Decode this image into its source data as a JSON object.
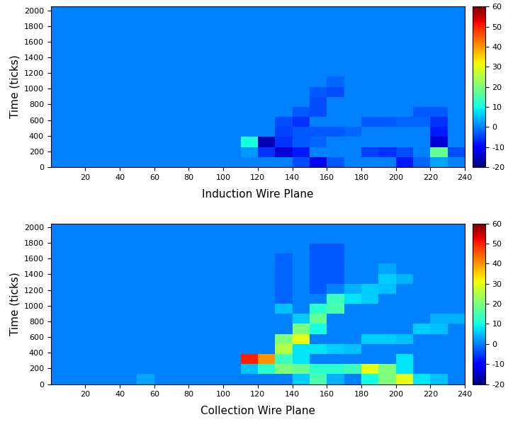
{
  "chart_data": [
    {
      "type": "heatmap",
      "color": "jet",
      "x_label": "Induction Wire Plane",
      "y_label": "Time (ticks)",
      "xlim": [
        0,
        240
      ],
      "ylim": [
        0,
        2048
      ],
      "xticks": [
        20,
        40,
        60,
        80,
        100,
        120,
        140,
        160,
        180,
        200,
        220,
        240
      ],
      "yticks": [
        0,
        200,
        400,
        600,
        800,
        1000,
        1200,
        1400,
        1600,
        1800,
        2000
      ],
      "x_edges": [
        0,
        10,
        20,
        30,
        40,
        50,
        60,
        70,
        80,
        90,
        100,
        110,
        120,
        130,
        140,
        150,
        160,
        170,
        180,
        190,
        200,
        210,
        220,
        230,
        240
      ],
      "y_edges": [
        0,
        128,
        256,
        384,
        512,
        640,
        768,
        896,
        1024,
        1152,
        1280,
        1408,
        1536,
        1664,
        1792,
        1920,
        2048
      ],
      "cells": [
        [
          0,
          0,
          0,
          0,
          0,
          0,
          0,
          0,
          0,
          0,
          0,
          0,
          0,
          0,
          -4,
          -12,
          -3,
          0,
          0,
          0,
          -8,
          -2,
          3,
          0
        ],
        [
          0,
          0,
          0,
          0,
          0,
          0,
          0,
          0,
          0,
          0,
          0,
          2,
          -6,
          -14,
          -8,
          0,
          0,
          0,
          -5,
          -6,
          -4,
          0,
          18,
          -4
        ],
        [
          0,
          0,
          0,
          0,
          0,
          0,
          0,
          0,
          0,
          0,
          0,
          10,
          -16,
          -6,
          -3,
          -2,
          0,
          0,
          0,
          0,
          0,
          0,
          -14,
          0
        ],
        [
          0,
          0,
          0,
          0,
          0,
          0,
          0,
          0,
          0,
          0,
          0,
          0,
          0,
          -5,
          -3,
          -3,
          -3,
          -2,
          0,
          0,
          0,
          0,
          -8,
          0
        ],
        [
          0,
          0,
          0,
          0,
          0,
          0,
          0,
          0,
          0,
          0,
          0,
          0,
          0,
          -4,
          -6,
          0,
          0,
          0,
          -3,
          -3,
          -2,
          -2,
          -6,
          0
        ],
        [
          0,
          0,
          0,
          0,
          0,
          0,
          0,
          0,
          0,
          0,
          0,
          0,
          0,
          0,
          -3,
          -4,
          0,
          0,
          0,
          0,
          0,
          -3,
          -3,
          0
        ],
        [
          0,
          0,
          0,
          0,
          0,
          0,
          0,
          0,
          0,
          0,
          0,
          0,
          0,
          0,
          0,
          -4,
          0,
          0,
          0,
          0,
          0,
          0,
          0,
          0
        ],
        [
          0,
          0,
          0,
          0,
          0,
          0,
          0,
          0,
          0,
          0,
          0,
          0,
          0,
          0,
          0,
          -3,
          -4,
          0,
          0,
          0,
          0,
          0,
          0,
          0
        ],
        [
          0,
          0,
          0,
          0,
          0,
          0,
          0,
          0,
          0,
          0,
          0,
          0,
          0,
          0,
          0,
          0,
          -2,
          0,
          0,
          0,
          0,
          0,
          0,
          0
        ],
        [
          0,
          0,
          0,
          0,
          0,
          0,
          0,
          0,
          0,
          0,
          0,
          0,
          0,
          0,
          0,
          0,
          0,
          0,
          0,
          0,
          0,
          0,
          0,
          0
        ],
        [
          0,
          0,
          0,
          0,
          0,
          0,
          0,
          0,
          0,
          0,
          0,
          0,
          0,
          0,
          0,
          0,
          0,
          0,
          0,
          0,
          0,
          0,
          0,
          0
        ],
        [
          0,
          0,
          0,
          0,
          0,
          0,
          0,
          0,
          0,
          0,
          0,
          0,
          0,
          0,
          0,
          0,
          0,
          0,
          0,
          0,
          0,
          0,
          0,
          0
        ],
        [
          0,
          0,
          0,
          0,
          0,
          0,
          0,
          0,
          0,
          0,
          0,
          0,
          0,
          0,
          0,
          0,
          0,
          0,
          0,
          0,
          0,
          0,
          0,
          0
        ],
        [
          0,
          0,
          0,
          0,
          0,
          0,
          0,
          0,
          0,
          0,
          0,
          0,
          0,
          0,
          0,
          0,
          0,
          0,
          0,
          0,
          0,
          0,
          0,
          0
        ],
        [
          0,
          0,
          0,
          0,
          0,
          0,
          0,
          0,
          0,
          0,
          0,
          0,
          0,
          0,
          0,
          0,
          0,
          0,
          0,
          0,
          0,
          0,
          0,
          0
        ],
        [
          0,
          0,
          0,
          0,
          0,
          0,
          0,
          0,
          0,
          0,
          0,
          0,
          0,
          0,
          0,
          0,
          0,
          0,
          0,
          0,
          0,
          0,
          0,
          0
        ]
      ],
      "colorbar_range": [
        -20,
        60
      ],
      "colorbar_ticks": [
        -20,
        -10,
        0,
        10,
        20,
        30,
        40,
        50,
        60
      ]
    },
    {
      "type": "heatmap",
      "color": "jet",
      "x_label": "Collection Wire Plane",
      "y_label": "Time (ticks)",
      "xlim": [
        0,
        240
      ],
      "ylim": [
        0,
        2048
      ],
      "xticks": [
        20,
        40,
        60,
        80,
        100,
        120,
        140,
        160,
        180,
        200,
        220,
        240
      ],
      "yticks": [
        0,
        200,
        400,
        600,
        800,
        1000,
        1200,
        1400,
        1600,
        1800,
        2000
      ],
      "x_edges": [
        0,
        10,
        20,
        30,
        40,
        50,
        60,
        70,
        80,
        90,
        100,
        110,
        120,
        130,
        140,
        150,
        160,
        170,
        180,
        190,
        200,
        210,
        220,
        230,
        240
      ],
      "y_edges": [
        0,
        128,
        256,
        384,
        512,
        640,
        768,
        896,
        1024,
        1152,
        1280,
        1408,
        1536,
        1664,
        1792,
        1920,
        2048
      ],
      "cells": [
        [
          0,
          0,
          0,
          0,
          0,
          3,
          0,
          0,
          0,
          0,
          0,
          0,
          0,
          0,
          6,
          15,
          4,
          0,
          10,
          20,
          30,
          8,
          5,
          0
        ],
        [
          0,
          0,
          0,
          0,
          0,
          0,
          0,
          0,
          0,
          0,
          0,
          5,
          12,
          20,
          18,
          12,
          12,
          14,
          30,
          20,
          8,
          0,
          0,
          0
        ],
        [
          0,
          0,
          0,
          0,
          0,
          0,
          0,
          0,
          0,
          0,
          0,
          50,
          40,
          14,
          8,
          0,
          0,
          0,
          0,
          0,
          8,
          0,
          0,
          0
        ],
        [
          0,
          0,
          0,
          0,
          0,
          0,
          0,
          0,
          0,
          0,
          0,
          0,
          0,
          25,
          8,
          8,
          6,
          5,
          0,
          0,
          0,
          0,
          0,
          0
        ],
        [
          0,
          0,
          0,
          0,
          0,
          0,
          0,
          0,
          0,
          0,
          0,
          0,
          0,
          20,
          30,
          0,
          0,
          0,
          6,
          6,
          5,
          0,
          0,
          0
        ],
        [
          0,
          0,
          0,
          0,
          0,
          0,
          0,
          0,
          0,
          0,
          0,
          0,
          0,
          0,
          20,
          10,
          0,
          0,
          0,
          0,
          0,
          6,
          5,
          0
        ],
        [
          0,
          0,
          0,
          0,
          0,
          0,
          0,
          0,
          0,
          0,
          0,
          0,
          0,
          0,
          6,
          18,
          0,
          0,
          0,
          0,
          0,
          0,
          4,
          4
        ],
        [
          0,
          0,
          0,
          0,
          0,
          0,
          0,
          0,
          0,
          0,
          0,
          0,
          0,
          5,
          0,
          12,
          15,
          0,
          0,
          0,
          0,
          0,
          0,
          0
        ],
        [
          0,
          0,
          0,
          0,
          0,
          0,
          0,
          0,
          0,
          0,
          0,
          0,
          0,
          -2,
          0,
          0,
          14,
          8,
          6,
          0,
          0,
          0,
          0,
          0
        ],
        [
          0,
          0,
          0,
          0,
          0,
          0,
          0,
          0,
          0,
          0,
          0,
          0,
          0,
          -2,
          0,
          -3,
          0,
          4,
          6,
          5,
          0,
          0,
          0,
          0
        ],
        [
          0,
          0,
          0,
          0,
          0,
          0,
          0,
          0,
          0,
          0,
          0,
          0,
          0,
          -2,
          0,
          -3,
          -3,
          0,
          0,
          6,
          4,
          0,
          0,
          0
        ],
        [
          0,
          0,
          0,
          0,
          0,
          0,
          0,
          0,
          0,
          0,
          0,
          0,
          0,
          -2,
          0,
          -3,
          -3,
          0,
          0,
          3,
          0,
          0,
          0,
          0
        ],
        [
          0,
          0,
          0,
          0,
          0,
          0,
          0,
          0,
          0,
          0,
          0,
          0,
          0,
          -2,
          0,
          -3,
          -3,
          0,
          0,
          0,
          0,
          0,
          0,
          0
        ],
        [
          0,
          0,
          0,
          0,
          0,
          0,
          0,
          0,
          0,
          0,
          0,
          0,
          0,
          0,
          0,
          -3,
          -3,
          0,
          0,
          0,
          0,
          0,
          0,
          0
        ],
        [
          0,
          0,
          0,
          0,
          0,
          0,
          0,
          0,
          0,
          0,
          0,
          0,
          0,
          0,
          0,
          0,
          0,
          0,
          0,
          0,
          0,
          0,
          0,
          0
        ],
        [
          0,
          0,
          0,
          0,
          0,
          0,
          0,
          0,
          0,
          0,
          0,
          0,
          0,
          0,
          0,
          0,
          0,
          0,
          0,
          0,
          0,
          0,
          0,
          0
        ]
      ],
      "colorbar_range": [
        -20,
        60
      ],
      "colorbar_ticks": [
        -20,
        -10,
        0,
        10,
        20,
        30,
        40,
        50,
        60
      ]
    }
  ]
}
